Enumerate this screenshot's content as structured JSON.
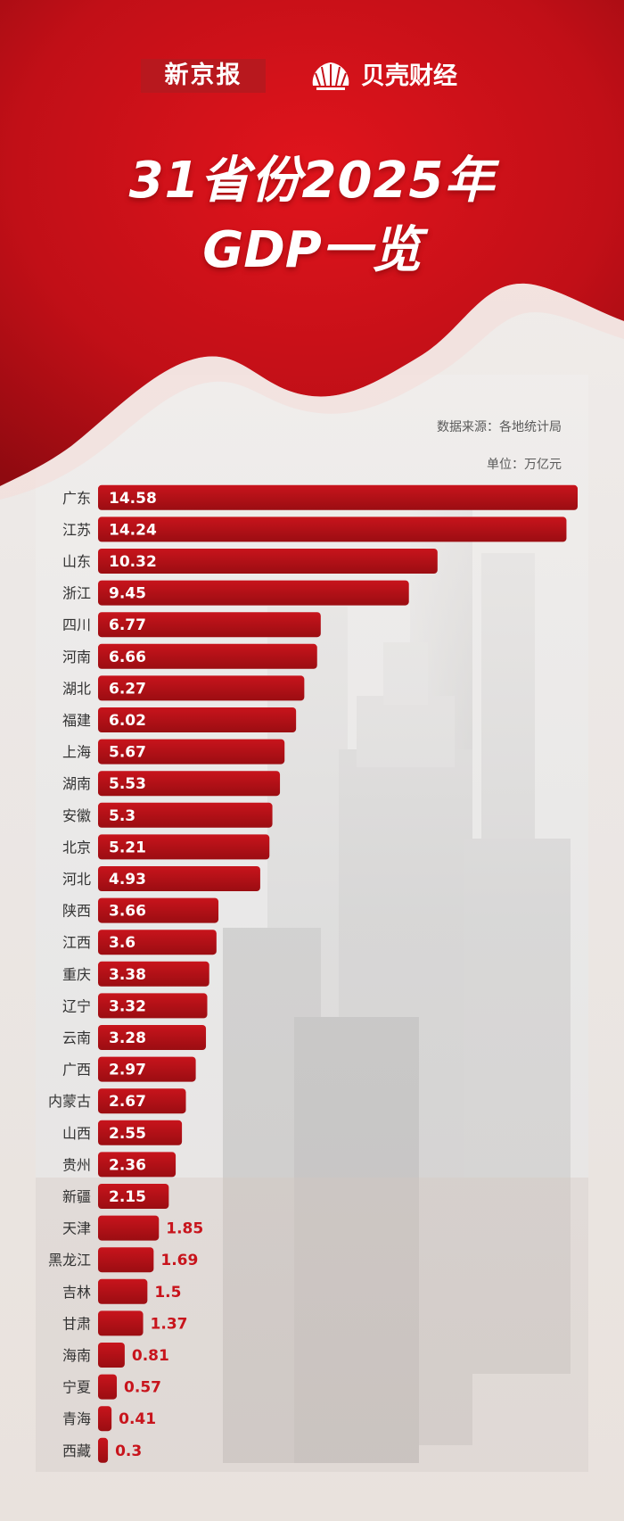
{
  "brand": {
    "xinjingbao": "新京报",
    "beike": "贝壳财经"
  },
  "header": {
    "title_line1": "31省份2025年",
    "title_line2": "GDP一览"
  },
  "notes": {
    "source": "数据来源：各地统计局",
    "unit": "单位：万亿元"
  },
  "colors": {
    "bar": "#c8141c",
    "bar_dark": "#9b0d12",
    "label_dark": "#333333",
    "value_outside": "#c8141c",
    "hero_red": "#c4121a"
  },
  "icons": [
    "shell-logo-icon"
  ],
  "chart_data": {
    "type": "bar",
    "orientation": "horizontal",
    "title": "31省份2025年GDP一览",
    "unit": "万亿元",
    "grid": false,
    "legend": "none",
    "categories": [
      "广东",
      "江苏",
      "山东",
      "浙江",
      "四川",
      "河南",
      "湖北",
      "福建",
      "上海",
      "湖南",
      "安徽",
      "北京",
      "河北",
      "陕西",
      "江西",
      "重庆",
      "辽宁",
      "云南",
      "广西",
      "内蒙古",
      "山西",
      "贵州",
      "新疆",
      "天津",
      "黑龙江",
      "吉林",
      "甘肃",
      "海南",
      "宁夏",
      "青海",
      "西藏"
    ],
    "values": [
      14.58,
      14.24,
      10.32,
      9.45,
      6.77,
      6.66,
      6.27,
      6.02,
      5.67,
      5.53,
      5.3,
      5.21,
      4.93,
      3.66,
      3.6,
      3.38,
      3.32,
      3.28,
      2.97,
      2.67,
      2.55,
      2.36,
      2.15,
      1.85,
      1.69,
      1.5,
      1.37,
      0.81,
      0.57,
      0.41,
      0.3
    ],
    "value_labels": [
      "14.58",
      "14.24",
      "10.32",
      "9.45",
      "6.77",
      "6.66",
      "6.27",
      "6.02",
      "5.67",
      "5.53",
      "5.3",
      "5.21",
      "4.93",
      "3.66",
      "3.6",
      "3.38",
      "3.32",
      "3.28",
      "2.97",
      "2.67",
      "2.55",
      "2.36",
      "2.15",
      "1.85",
      "1.69",
      "1.5",
      "1.37",
      "0.81",
      "0.57",
      "0.41",
      "0.3"
    ],
    "xlim": [
      0,
      14.58
    ]
  }
}
